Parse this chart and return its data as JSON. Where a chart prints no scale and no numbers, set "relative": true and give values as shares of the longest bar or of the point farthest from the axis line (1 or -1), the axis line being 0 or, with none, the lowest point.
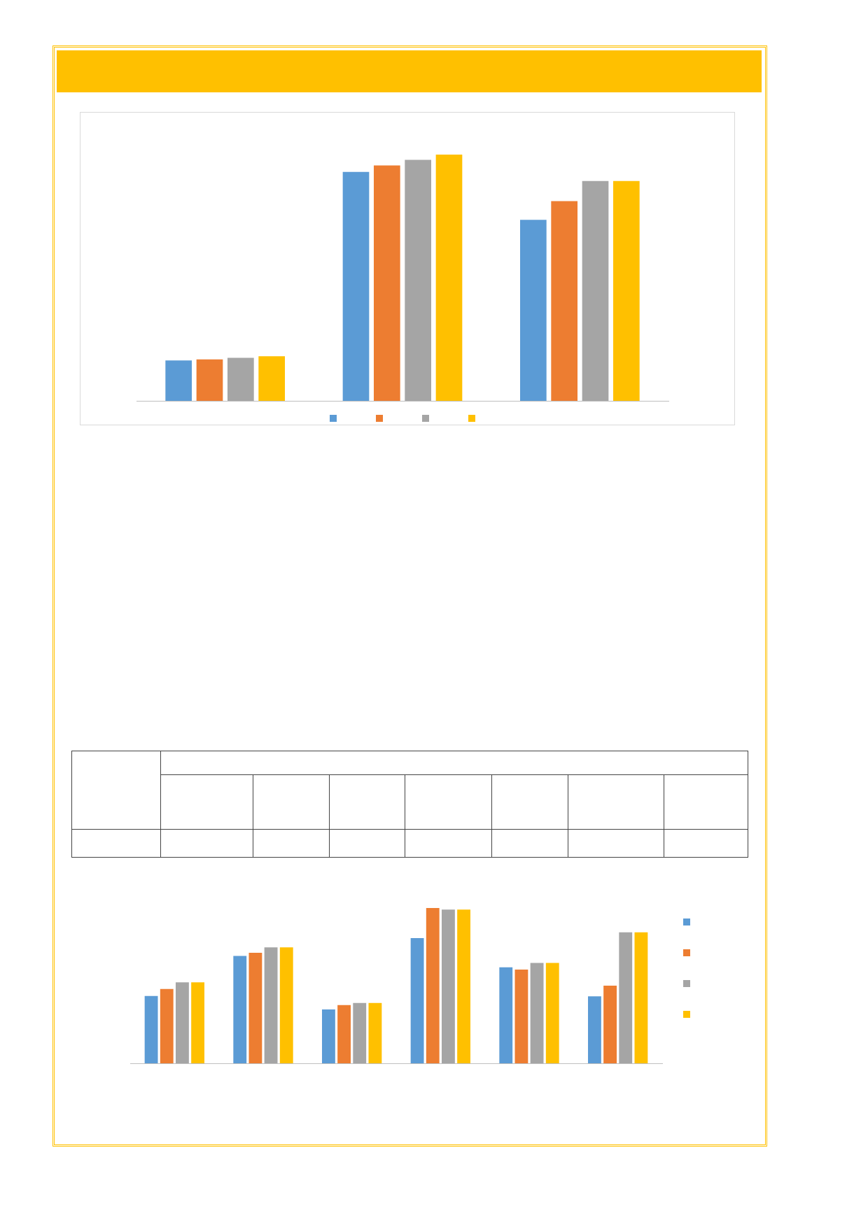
{
  "chart_data": [
    {
      "type": "bar",
      "relative": true,
      "categories": [
        null,
        null,
        null
      ],
      "series": [
        {
          "color": "#5b9bd5",
          "values": [
            0.164,
            0.93,
            0.735
          ]
        },
        {
          "color": "#ed7d31",
          "values": [
            0.168,
            0.956,
            0.811
          ]
        },
        {
          "color": "#a5a5a5",
          "values": [
            0.175,
            0.979,
            0.893
          ]
        },
        {
          "color": "#ffc000",
          "values": [
            0.181,
            1,
            0.893
          ]
        }
      ]
    },
    {
      "type": "bar",
      "relative": true,
      "categories": [
        null,
        null,
        null,
        null,
        null,
        null
      ],
      "series": [
        {
          "color": "#5b9bd5",
          "values": [
            0.434,
            0.691,
            0.347,
            0.806,
            0.618,
            0.431
          ]
        },
        {
          "color": "#ed7d31",
          "values": [
            0.479,
            0.712,
            0.375,
            1,
            0.604,
            0.5
          ]
        },
        {
          "color": "#a5a5a5",
          "values": [
            0.521,
            0.747,
            0.389,
            0.99,
            0.646,
            0.844
          ]
        },
        {
          "color": "#ffc000",
          "values": [
            0.521,
            0.747,
            0.389,
            0.99,
            0.646,
            0.844
          ]
        }
      ]
    }
  ]
}
